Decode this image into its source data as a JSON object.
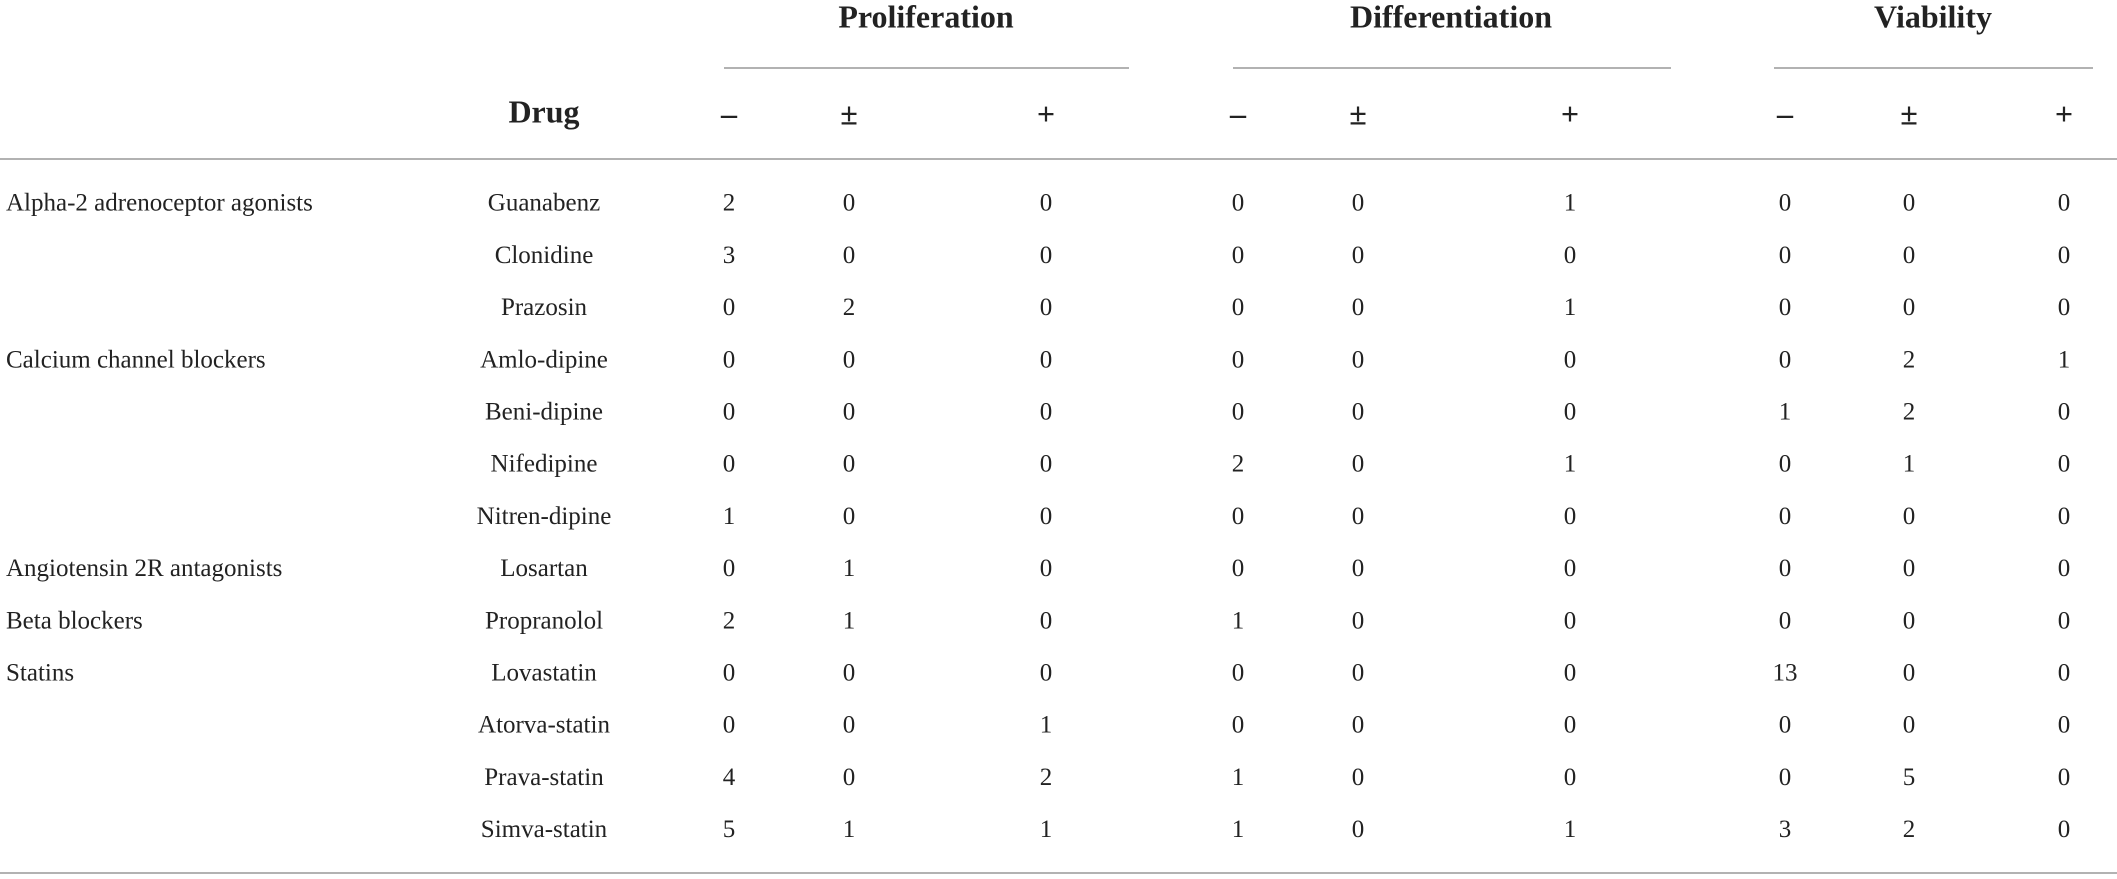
{
  "table": {
    "header": {
      "drug": "Drug",
      "groups": [
        {
          "title": "Proliferation",
          "columns": [
            "–",
            "±",
            "+"
          ]
        },
        {
          "title": "Differentiation",
          "columns": [
            "–",
            "±",
            "+"
          ]
        },
        {
          "title": "Viability",
          "columns": [
            "–",
            "±",
            "+"
          ]
        }
      ]
    },
    "sections": [
      {
        "class": "Alpha-2 adrenoceptor agonists",
        "rows": [
          {
            "drug": "Guanabenz",
            "values": [
              2,
              0,
              0,
              0,
              0,
              1,
              0,
              0,
              0
            ]
          },
          {
            "drug": "Clonidine",
            "values": [
              3,
              0,
              0,
              0,
              0,
              0,
              0,
              0,
              0
            ]
          },
          {
            "drug": "Prazosin",
            "values": [
              0,
              2,
              0,
              0,
              0,
              1,
              0,
              0,
              0
            ]
          }
        ]
      },
      {
        "class": "Calcium channel blockers",
        "rows": [
          {
            "drug": "Amlo-dipine",
            "values": [
              0,
              0,
              0,
              0,
              0,
              0,
              0,
              2,
              1
            ]
          },
          {
            "drug": "Beni-dipine",
            "values": [
              0,
              0,
              0,
              0,
              0,
              0,
              1,
              2,
              0
            ]
          },
          {
            "drug": "Nifedipine",
            "values": [
              0,
              0,
              0,
              2,
              0,
              1,
              0,
              1,
              0
            ]
          },
          {
            "drug": "Nitren-dipine",
            "values": [
              1,
              0,
              0,
              0,
              0,
              0,
              0,
              0,
              0
            ]
          }
        ]
      },
      {
        "class": "Angiotensin 2R antagonists",
        "rows": [
          {
            "drug": "Losartan",
            "values": [
              0,
              1,
              0,
              0,
              0,
              0,
              0,
              0,
              0
            ]
          }
        ]
      },
      {
        "class": "Beta blockers",
        "rows": [
          {
            "drug": "Propranolol",
            "values": [
              2,
              1,
              0,
              1,
              0,
              0,
              0,
              0,
              0
            ]
          }
        ]
      },
      {
        "class": "Statins",
        "rows": [
          {
            "drug": "Lovastatin",
            "values": [
              0,
              0,
              0,
              0,
              0,
              0,
              13,
              0,
              0
            ]
          },
          {
            "drug": "Atorva-statin",
            "values": [
              0,
              0,
              1,
              0,
              0,
              0,
              0,
              0,
              0
            ]
          },
          {
            "drug": "Prava-statin",
            "values": [
              4,
              0,
              2,
              1,
              0,
              0,
              0,
              5,
              0
            ]
          },
          {
            "drug": "Simva-statin",
            "values": [
              5,
              1,
              1,
              1,
              0,
              1,
              3,
              2,
              0
            ]
          }
        ]
      }
    ]
  }
}
